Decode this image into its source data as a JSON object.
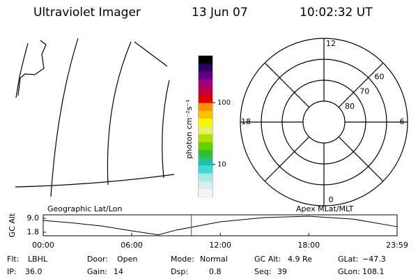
{
  "header": {
    "title": "Ultraviolet Imager",
    "date": "13 Jun 07",
    "time": "10:02:32 UT"
  },
  "colorbar": {
    "label": "photon cm⁻²s⁻¹",
    "scale": "log",
    "lim": [
      3,
      575
    ],
    "ticks": [
      10,
      100
    ],
    "colors": [
      "#f4f4f4",
      "#d8eeee",
      "#a8e8e8",
      "#40d8d8",
      "#20c0a0",
      "#30c030",
      "#60d000",
      "#b0e000",
      "#e8f060",
      "#f8f800",
      "#f8c000",
      "#f89000",
      "#e00000",
      "#c00040",
      "#a00080",
      "#600080",
      "#300060",
      "#000000"
    ]
  },
  "polar": {
    "rlim": [
      90,
      50
    ],
    "rticks": [
      80,
      70,
      60
    ],
    "mlt_ticks": [
      12,
      18,
      6,
      0
    ]
  },
  "map_label": "Geographic Lat/Lon",
  "polar_label": "Apex MLat/MLT",
  "altitude": {
    "ylabel": "GC Alt",
    "ylim": [
      0,
      10.8
    ],
    "yticks": [
      {
        "value": 9.0,
        "label": "9.0"
      },
      {
        "value": 1.8,
        "label": "1.8"
      }
    ],
    "xlim": [
      0,
      23.983
    ],
    "xticks": [
      {
        "value": 0,
        "label": "00:00"
      },
      {
        "value": 6,
        "label": "06:00"
      },
      {
        "value": 12,
        "label": "12:00"
      },
      {
        "value": 18,
        "label": "18:00"
      },
      {
        "value": 23.983,
        "label": "23:59"
      }
    ],
    "x": [
      0,
      2,
      4,
      6,
      7.8,
      9,
      12,
      15,
      18,
      21,
      23.983
    ],
    "values": [
      7.9,
      6.6,
      5.0,
      2.5,
      0.5,
      2.9,
      7.2,
      9.4,
      10.1,
      8.6,
      4.7
    ],
    "color": "#000000",
    "marker_time": 10.042,
    "marker_color": "#cc2222"
  },
  "footer": {
    "rows": [
      [
        {
          "label": "Flt:",
          "value": "LBHL"
        },
        {
          "label": "Door:",
          "value": "Open"
        },
        {
          "label": "Mode:",
          "value": "Normal"
        },
        {
          "label": "GC Alt:",
          "value": "4.9 Re"
        },
        {
          "label": "GLat:",
          "value": "−47.3"
        }
      ],
      [
        {
          "label": "IP:",
          "value": "36.0"
        },
        {
          "label": "Gain:",
          "value": "14"
        },
        {
          "label": "Dsp:",
          "value": "0.8"
        },
        {
          "label": "Seq:",
          "value": "39"
        },
        {
          "label": "GLon:",
          "value": "108.1"
        }
      ]
    ]
  }
}
